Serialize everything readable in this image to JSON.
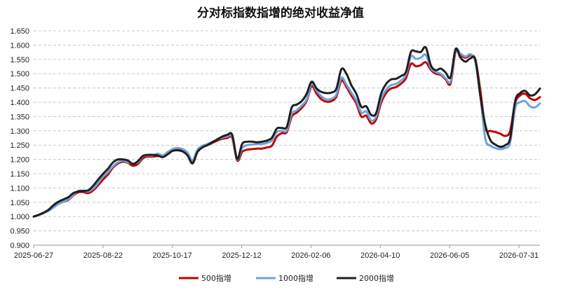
{
  "chart_data": {
    "type": "line",
    "title": "分对标指数指增的绝对收益净值",
    "xlabel": "",
    "ylabel": "",
    "ylim": [
      0.9,
      1.65
    ],
    "yticks": [
      "0.900",
      "0.950",
      "1.000",
      "1.050",
      "1.100",
      "1.150",
      "1.200",
      "1.250",
      "1.300",
      "1.350",
      "1.400",
      "1.450",
      "1.500",
      "1.550",
      "1.600",
      "1.650"
    ],
    "xticks": [
      "2025-06-27",
      "2025-08-22",
      "2025-10-17",
      "2025-12-12",
      "2026-02-06",
      "2026-04-10",
      "2026-06-05",
      "2026-07-31"
    ],
    "grid": "horizontal-dashed",
    "legend": "bottom",
    "series": [
      {
        "name": "500指增",
        "color": "#c00000",
        "values": [
          1.0,
          1.006,
          1.012,
          1.022,
          1.036,
          1.046,
          1.052,
          1.058,
          1.074,
          1.085,
          1.086,
          1.082,
          1.092,
          1.11,
          1.13,
          1.148,
          1.172,
          1.186,
          1.192,
          1.188,
          1.178,
          1.184,
          1.204,
          1.21,
          1.21,
          1.212,
          1.21,
          1.222,
          1.234,
          1.235,
          1.23,
          1.218,
          1.19,
          1.23,
          1.244,
          1.25,
          1.258,
          1.266,
          1.272,
          1.275,
          1.275,
          1.196,
          1.226,
          1.234,
          1.236,
          1.238,
          1.238,
          1.242,
          1.248,
          1.28,
          1.292,
          1.296,
          1.35,
          1.364,
          1.38,
          1.405,
          1.456,
          1.43,
          1.41,
          1.402,
          1.404,
          1.42,
          1.476,
          1.454,
          1.424,
          1.396,
          1.35,
          1.353,
          1.326,
          1.34,
          1.398,
          1.432,
          1.448,
          1.453,
          1.465,
          1.484,
          1.534,
          1.526,
          1.53,
          1.54,
          1.514,
          1.5,
          1.496,
          1.48,
          1.466,
          1.576,
          1.564,
          1.556,
          1.564,
          1.548,
          1.44,
          1.31,
          1.3,
          1.296,
          1.29,
          1.282,
          1.3,
          1.398,
          1.424,
          1.43,
          1.414,
          1.408,
          1.418
        ]
      },
      {
        "name": "1000指增",
        "color": "#6ea3d8",
        "values": [
          1.0,
          1.005,
          1.012,
          1.02,
          1.032,
          1.044,
          1.052,
          1.06,
          1.076,
          1.09,
          1.09,
          1.088,
          1.098,
          1.118,
          1.14,
          1.156,
          1.176,
          1.19,
          1.196,
          1.19,
          1.186,
          1.19,
          1.21,
          1.214,
          1.214,
          1.22,
          1.214,
          1.226,
          1.236,
          1.24,
          1.236,
          1.224,
          1.196,
          1.234,
          1.248,
          1.254,
          1.262,
          1.27,
          1.276,
          1.28,
          1.28,
          1.2,
          1.24,
          1.25,
          1.252,
          1.254,
          1.254,
          1.258,
          1.266,
          1.296,
          1.3,
          1.302,
          1.36,
          1.372,
          1.388,
          1.41,
          1.464,
          1.44,
          1.42,
          1.41,
          1.412,
          1.428,
          1.486,
          1.462,
          1.434,
          1.406,
          1.364,
          1.368,
          1.336,
          1.35,
          1.41,
          1.444,
          1.46,
          1.464,
          1.476,
          1.496,
          1.56,
          1.552,
          1.556,
          1.566,
          1.52,
          1.506,
          1.5,
          1.484,
          1.474,
          1.582,
          1.57,
          1.56,
          1.568,
          1.54,
          1.42,
          1.272,
          1.248,
          1.24,
          1.236,
          1.24,
          1.26,
          1.38,
          1.4,
          1.404,
          1.386,
          1.382,
          1.396
        ]
      },
      {
        "name": "2000指增",
        "color": "#1f1f1f",
        "values": [
          1.0,
          1.006,
          1.014,
          1.024,
          1.04,
          1.052,
          1.06,
          1.068,
          1.082,
          1.088,
          1.09,
          1.092,
          1.108,
          1.13,
          1.15,
          1.168,
          1.19,
          1.2,
          1.2,
          1.196,
          1.184,
          1.194,
          1.212,
          1.216,
          1.216,
          1.214,
          1.208,
          1.218,
          1.23,
          1.232,
          1.228,
          1.214,
          1.186,
          1.226,
          1.242,
          1.25,
          1.26,
          1.27,
          1.28,
          1.286,
          1.286,
          1.202,
          1.254,
          1.262,
          1.262,
          1.26,
          1.262,
          1.266,
          1.276,
          1.308,
          1.31,
          1.314,
          1.382,
          1.392,
          1.404,
          1.43,
          1.472,
          1.448,
          1.436,
          1.432,
          1.434,
          1.448,
          1.516,
          1.5,
          1.46,
          1.43,
          1.384,
          1.386,
          1.356,
          1.362,
          1.43,
          1.464,
          1.48,
          1.482,
          1.492,
          1.506,
          1.576,
          1.578,
          1.576,
          1.592,
          1.53,
          1.512,
          1.518,
          1.504,
          1.488,
          1.586,
          1.556,
          1.542,
          1.554,
          1.548,
          1.42,
          1.32,
          1.268,
          1.252,
          1.244,
          1.25,
          1.274,
          1.404,
          1.432,
          1.44,
          1.424,
          1.428,
          1.448
        ]
      }
    ]
  }
}
